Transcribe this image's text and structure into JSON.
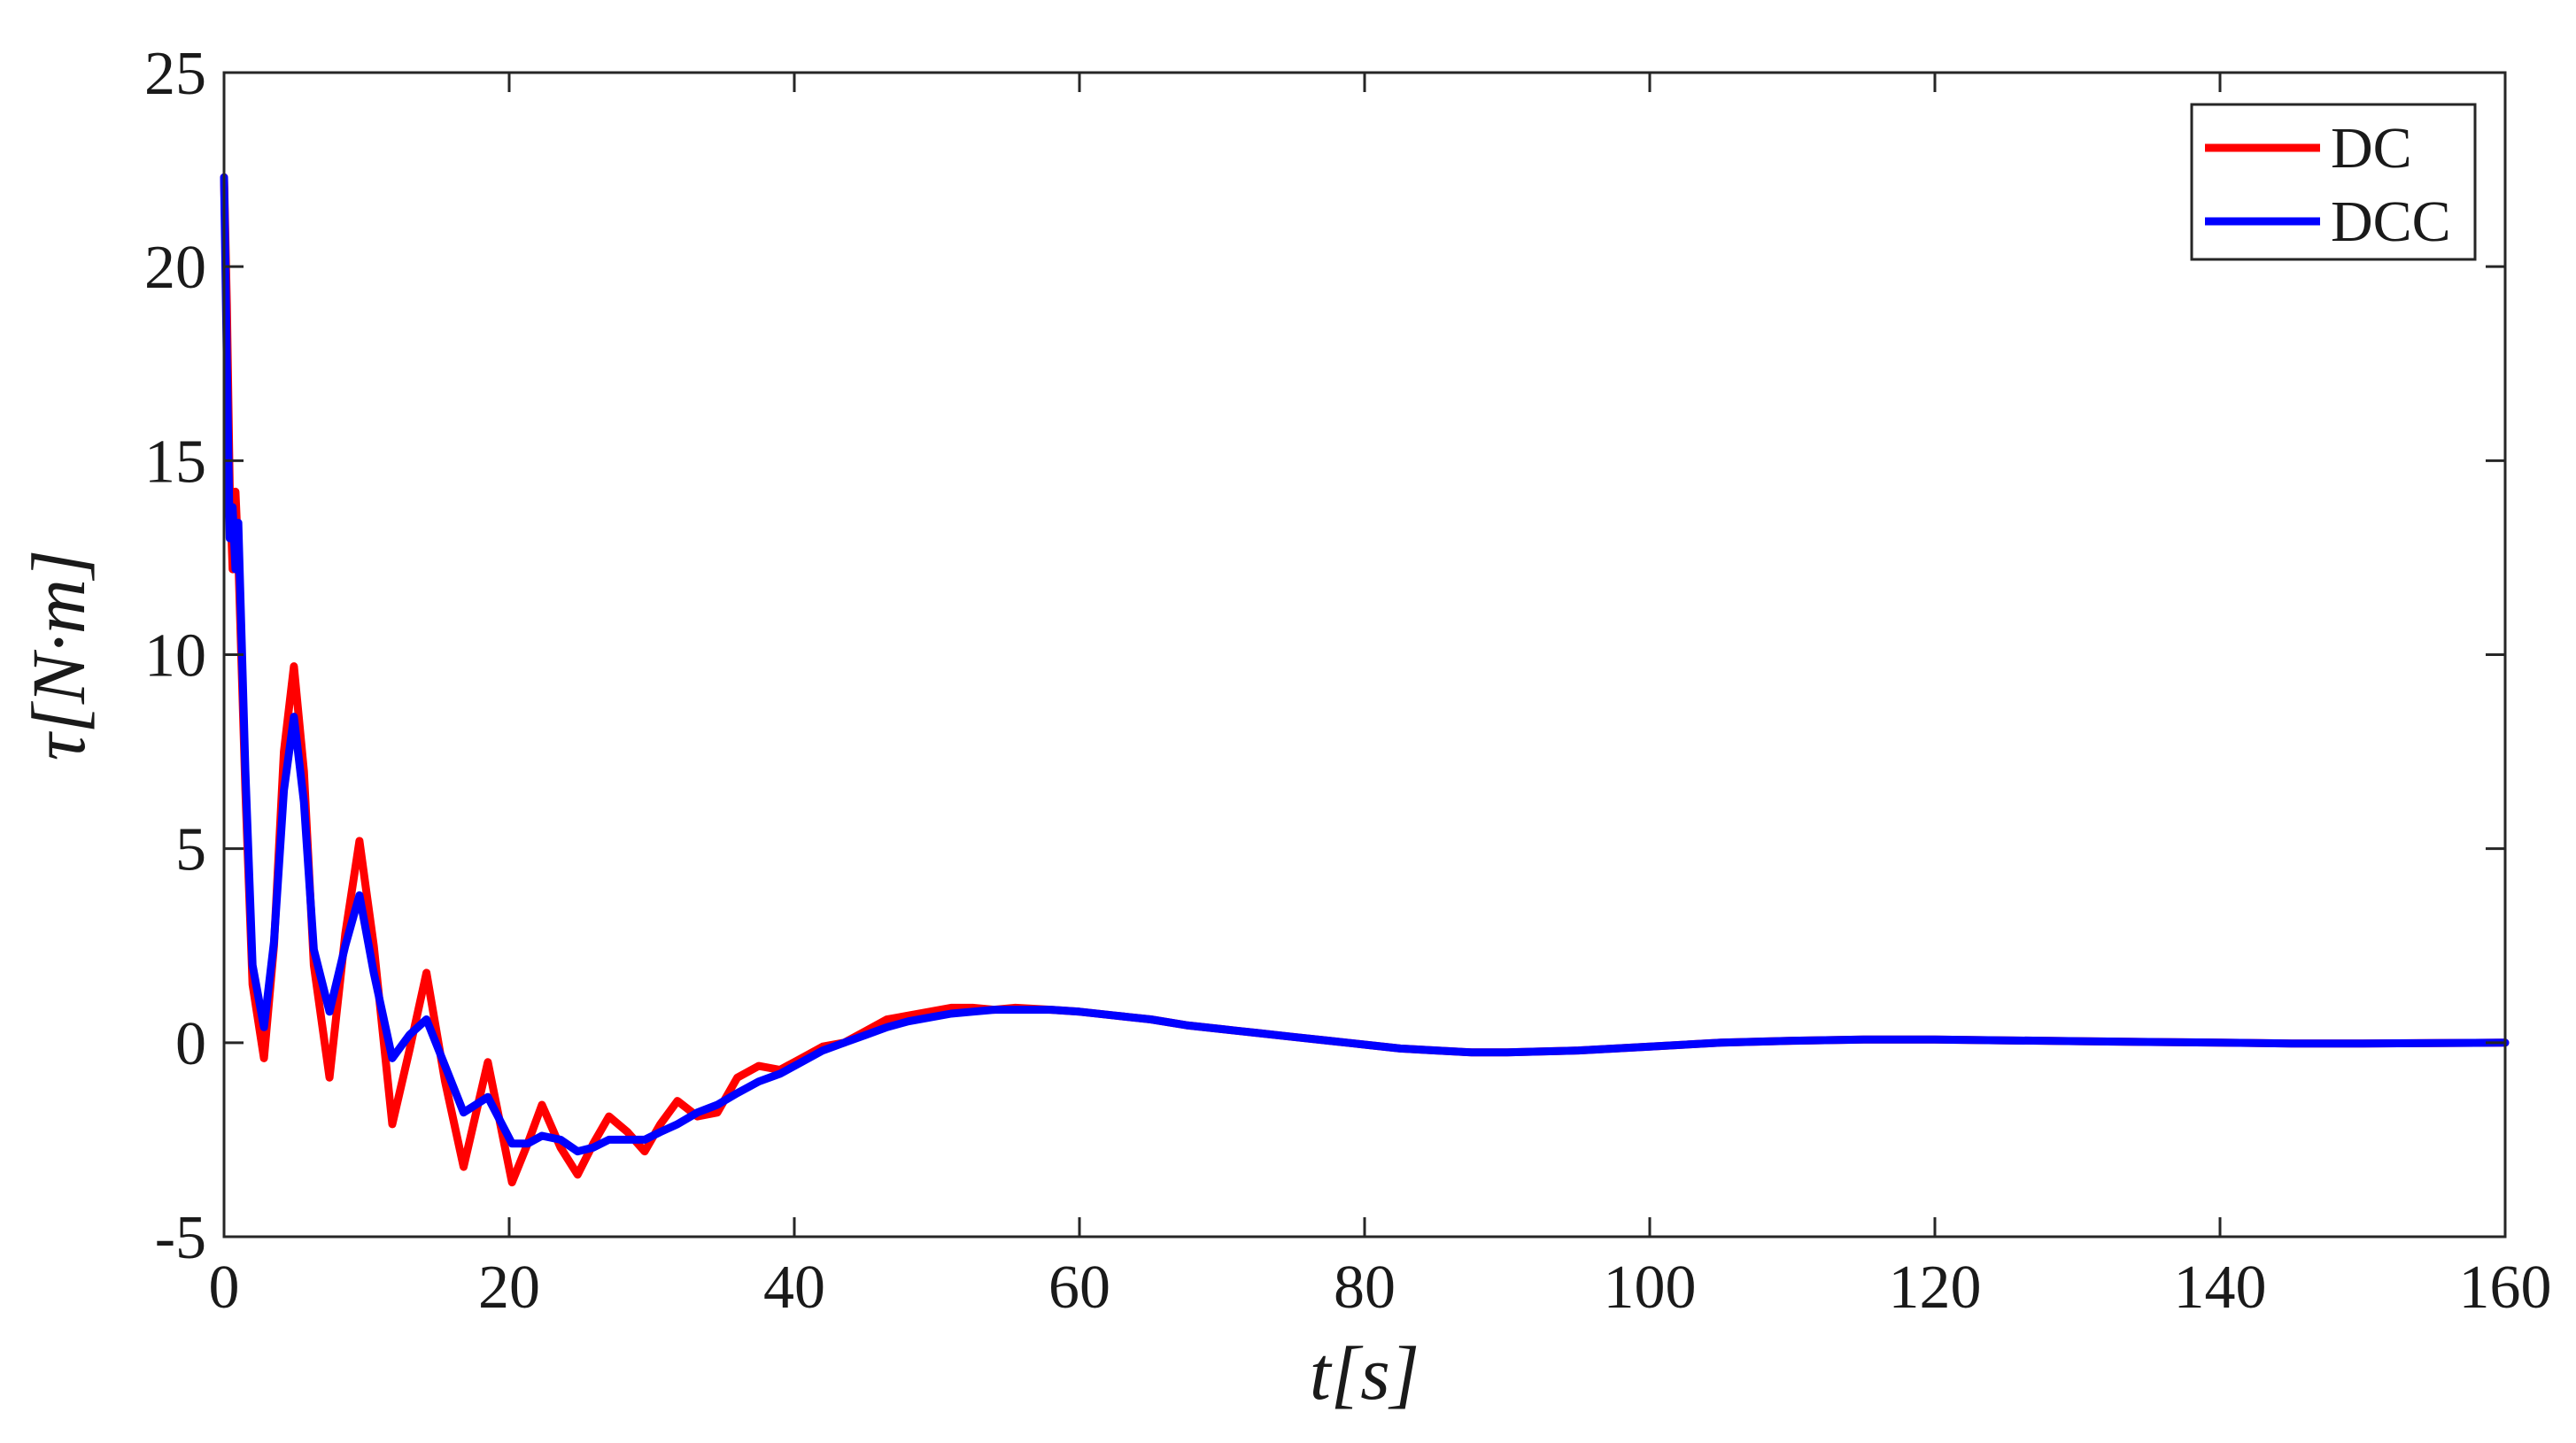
{
  "chart_data": {
    "type": "line",
    "title": "",
    "xlabel": "t[s]",
    "ylabel": "τ[N·m]",
    "xlim": [
      0,
      160
    ],
    "ylim": [
      -5,
      25
    ],
    "xticks": [
      0,
      20,
      40,
      60,
      80,
      100,
      120,
      140,
      160
    ],
    "yticks": [
      -5,
      0,
      5,
      10,
      15,
      20,
      25
    ],
    "grid": false,
    "legend_position": "top-right",
    "series": [
      {
        "name": "DC",
        "color": "#ff0000",
        "x": [
          0,
          0.2,
          0.4,
          0.6,
          0.8,
          1.0,
          1.5,
          2.0,
          2.8,
          3.5,
          4.2,
          4.9,
          5.6,
          6.3,
          7.4,
          8.5,
          9.5,
          10.5,
          11.8,
          13.0,
          14.2,
          15.5,
          16.8,
          18.5,
          20.2,
          21.3,
          22.3,
          23.6,
          24.8,
          25.9,
          27.0,
          28.3,
          29.5,
          30.6,
          31.8,
          33.2,
          34.6,
          36.0,
          37.5,
          39.0,
          40.5,
          42.0,
          43.5,
          45.0,
          46.5,
          48.0,
          49.5,
          51.0,
          52.5,
          54.0,
          55.5,
          58.0,
          60.0,
          62.5,
          65.0,
          67.5,
          70.0,
          72.5,
          75.0,
          77.5,
          80.0,
          82.5,
          85.0,
          87.5,
          90.0,
          95.0,
          100.0,
          105.0,
          110.0,
          115.0,
          120.0,
          125.0,
          130.0,
          135.0,
          140.0,
          145.0,
          150.0,
          155.0,
          160.0
        ],
        "values": [
          22.3,
          19.0,
          14.3,
          12.2,
          14.2,
          12.5,
          6.5,
          1.5,
          -0.4,
          2.5,
          7.5,
          9.7,
          7.0,
          2.0,
          -0.9,
          2.8,
          5.2,
          2.5,
          -2.1,
          -0.2,
          1.8,
          -1.0,
          -3.2,
          -0.5,
          -3.6,
          -2.6,
          -1.6,
          -2.7,
          -3.4,
          -2.6,
          -1.9,
          -2.3,
          -2.8,
          -2.1,
          -1.5,
          -1.9,
          -1.8,
          -0.9,
          -0.6,
          -0.7,
          -0.4,
          -0.1,
          0.0,
          0.3,
          0.6,
          0.7,
          0.8,
          0.9,
          0.9,
          0.85,
          0.9,
          0.85,
          0.8,
          0.7,
          0.6,
          0.45,
          0.35,
          0.25,
          0.15,
          0.05,
          -0.05,
          -0.15,
          -0.2,
          -0.25,
          -0.25,
          -0.2,
          -0.1,
          0.0,
          0.05,
          0.08,
          0.08,
          0.06,
          0.04,
          0.02,
          0.0,
          -0.02,
          -0.02,
          -0.01,
          0.0
        ]
      },
      {
        "name": "DCC",
        "color": "#0000ff",
        "x": [
          0,
          0.2,
          0.4,
          0.6,
          0.8,
          1.0,
          1.5,
          2.0,
          2.8,
          3.5,
          4.2,
          4.9,
          5.6,
          6.3,
          7.4,
          8.5,
          9.5,
          10.5,
          11.8,
          13.0,
          14.2,
          15.5,
          16.8,
          18.5,
          20.2,
          21.3,
          22.3,
          23.6,
          24.8,
          25.9,
          27.0,
          28.3,
          29.5,
          30.6,
          31.8,
          33.2,
          34.6,
          36.0,
          37.5,
          39.0,
          40.5,
          42.0,
          43.5,
          45.0,
          46.5,
          48.0,
          49.5,
          51.0,
          52.5,
          54.0,
          55.5,
          58.0,
          60.0,
          62.5,
          65.0,
          67.5,
          70.0,
          72.5,
          75.0,
          77.5,
          80.0,
          82.5,
          85.0,
          87.5,
          90.0,
          95.0,
          100.0,
          105.0,
          110.0,
          115.0,
          120.0,
          125.0,
          130.0,
          135.0,
          140.0,
          145.0,
          150.0,
          155.0,
          160.0
        ],
        "values": [
          22.3,
          17.5,
          13.0,
          13.8,
          12.2,
          13.4,
          7.0,
          2.0,
          0.4,
          2.6,
          6.5,
          8.4,
          6.2,
          2.4,
          0.8,
          2.5,
          3.8,
          1.8,
          -0.4,
          0.2,
          0.6,
          -0.6,
          -1.8,
          -1.4,
          -2.6,
          -2.6,
          -2.4,
          -2.5,
          -2.8,
          -2.7,
          -2.5,
          -2.5,
          -2.5,
          -2.3,
          -2.1,
          -1.8,
          -1.6,
          -1.3,
          -1.0,
          -0.8,
          -0.5,
          -0.2,
          0.0,
          0.2,
          0.4,
          0.55,
          0.65,
          0.75,
          0.8,
          0.85,
          0.85,
          0.85,
          0.8,
          0.7,
          0.6,
          0.45,
          0.35,
          0.25,
          0.15,
          0.05,
          -0.05,
          -0.15,
          -0.2,
          -0.25,
          -0.25,
          -0.2,
          -0.1,
          0.0,
          0.05,
          0.08,
          0.08,
          0.06,
          0.04,
          0.02,
          0.0,
          -0.02,
          -0.02,
          -0.01,
          0.0
        ]
      }
    ]
  }
}
